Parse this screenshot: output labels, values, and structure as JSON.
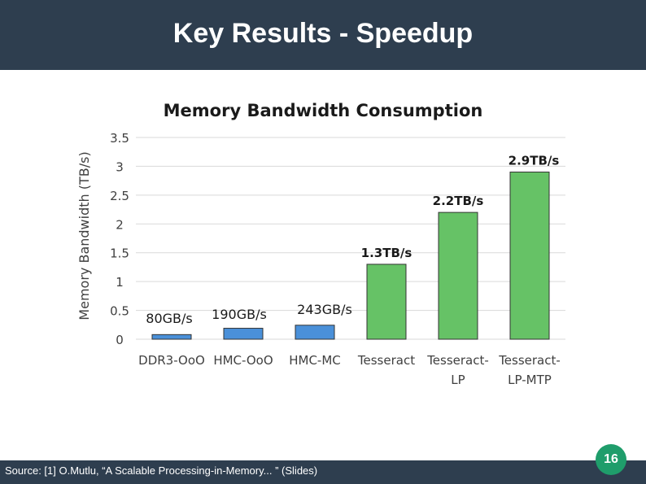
{
  "slide": {
    "title": "Key Results - Speedup",
    "source": "Source: [1] O.Mutlu, “A Scalable Processing-in-Memory... ” (Slides)",
    "page_number": "16",
    "header_color": "#2e3e4f",
    "page_badge_color": "#1f9d6b"
  },
  "chart_data": {
    "type": "bar",
    "title": "Memory Bandwidth Consumption",
    "xlabel": "",
    "ylabel": "Memory Bandwidth (TB/s)",
    "ylim": [
      0,
      3.5
    ],
    "yticks": [
      "0",
      "0.5",
      "1",
      "1.5",
      "2",
      "2.5",
      "3",
      "3.5"
    ],
    "grid": true,
    "categories": [
      [
        "DDR3-OoO"
      ],
      [
        "HMC-OoO"
      ],
      [
        "HMC-MC"
      ],
      [
        "Tesseract"
      ],
      [
        "Tesseract-",
        "LP"
      ],
      [
        "Tesseract-",
        "LP-MTP"
      ]
    ],
    "values": [
      0.08,
      0.19,
      0.243,
      1.3,
      2.2,
      2.9
    ],
    "data_labels": [
      "80GB/s",
      "190GB/s",
      "243GB/s",
      "1.3TB/s",
      "2.2TB/s",
      "2.9TB/s"
    ],
    "colors": [
      "#4a90d9",
      "#4a90d9",
      "#4a90d9",
      "#66c266",
      "#66c266",
      "#66c266"
    ],
    "bar_border": "#333333",
    "bold_labels": [
      false,
      false,
      false,
      true,
      true,
      true
    ]
  }
}
